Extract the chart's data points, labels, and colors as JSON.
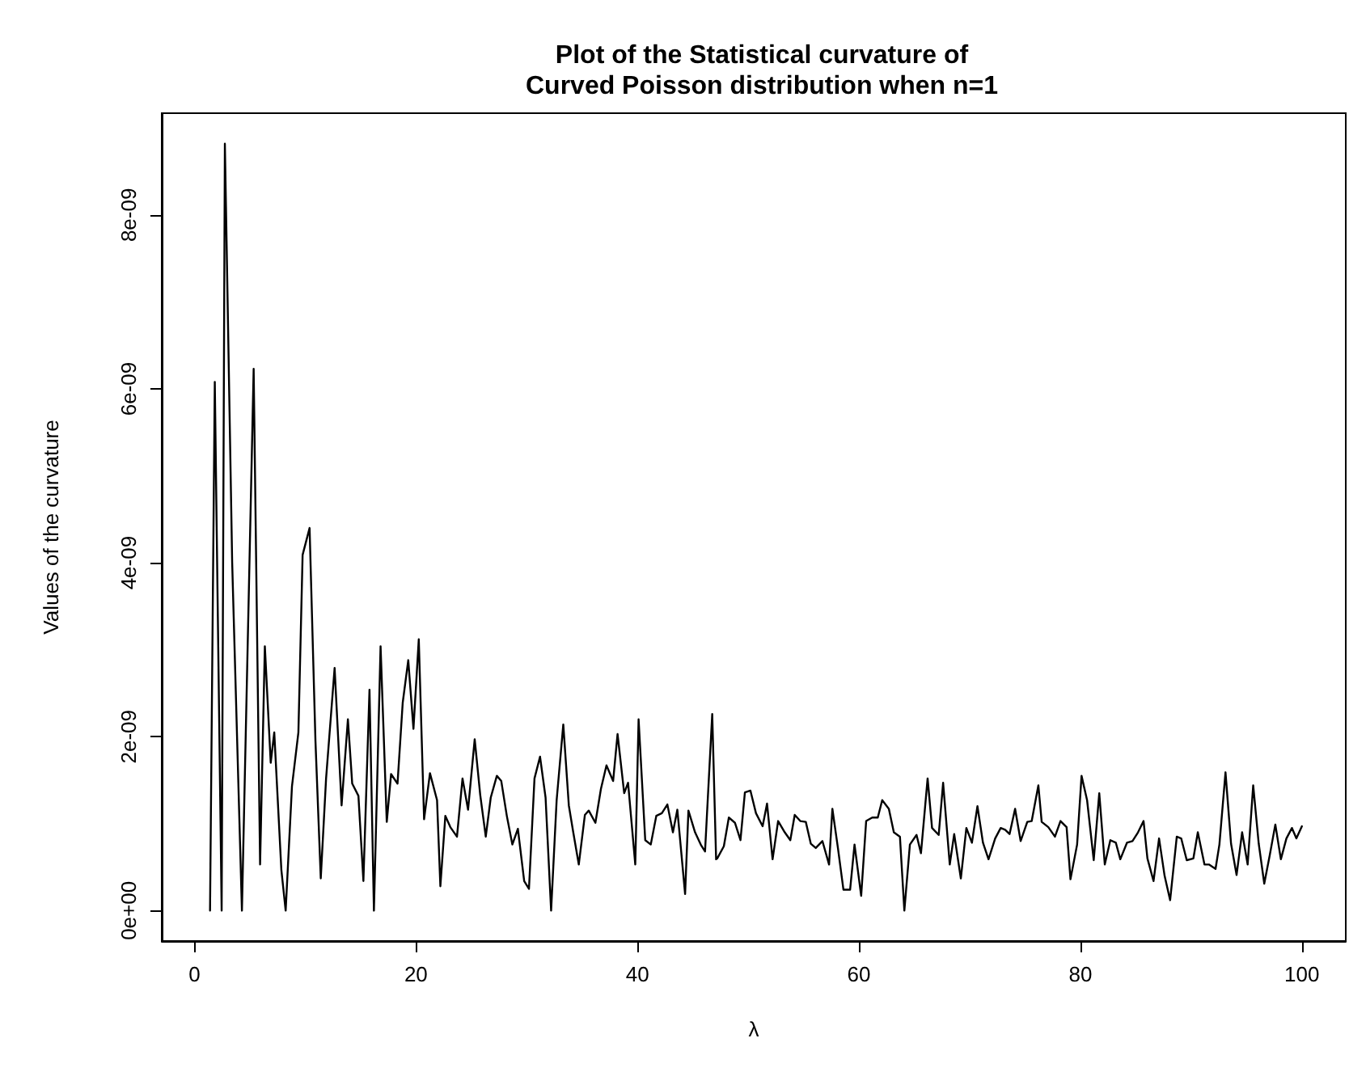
{
  "chart_data": {
    "type": "line",
    "title": "Plot of the Statistical curvature of\nCurved Poisson distribution when n=1",
    "xlabel": "λ",
    "ylabel": "Values of the curvature",
    "x": [
      1.4,
      1.83,
      2.45,
      2.74,
      3.4,
      4.28,
      5.34,
      5.92,
      6.35,
      6.88,
      7.2,
      7.84,
      8.23,
      8.8,
      9.38,
      9.76,
      10.39,
      10.92,
      11.4,
      11.88,
      12.65,
      13.28,
      13.85,
      14.24,
      14.8,
      15.25,
      15.8,
      16.2,
      16.8,
      17.36,
      17.75,
      18.33,
      18.8,
      19.3,
      19.77,
      20.25,
      20.73,
      21.26,
      21.9,
      22.2,
      22.65,
      23.1,
      23.7,
      24.2,
      24.7,
      25.3,
      25.8,
      26.3,
      26.75,
      27.3,
      27.7,
      28.2,
      28.7,
      29.2,
      29.77,
      30.2,
      30.7,
      31.2,
      31.7,
      32.2,
      32.7,
      33.3,
      33.8,
      34.2,
      34.7,
      35.25,
      35.6,
      36.2,
      36.7,
      37.2,
      37.8,
      38.2,
      38.8,
      39.15,
      39.8,
      40.1,
      40.7,
      41.2,
      41.7,
      42.2,
      42.7,
      43.2,
      43.6,
      44.3,
      44.6,
      45.2,
      45.75,
      46.1,
      46.75,
      47.1,
      47.2,
      47.8,
      48.25,
      48.8,
      49.3,
      49.7,
      50.2,
      50.7,
      51.3,
      51.7,
      52.2,
      52.7,
      53.3,
      53.8,
      54.2,
      54.7,
      55.2,
      55.65,
      56.1,
      56.7,
      57.3,
      57.6,
      58.1,
      58.6,
      59.2,
      59.6,
      60.2,
      60.65,
      61.2,
      61.7,
      62.1,
      62.7,
      63.15,
      63.7,
      64.1,
      64.6,
      65.2,
      65.6,
      66.2,
      66.6,
      67.2,
      67.6,
      68.2,
      68.6,
      69.2,
      69.7,
      70.2,
      70.7,
      71.2,
      71.7,
      72.3,
      72.8,
      73.2,
      73.6,
      74.1,
      74.6,
      75.2,
      75.6,
      76.2,
      76.5,
      77.1,
      77.7,
      78.2,
      78.75,
      79.1,
      79.7,
      80.1,
      80.6,
      81.2,
      81.7,
      82.2,
      82.7,
      83.2,
      83.6,
      84.2,
      84.7,
      85.2,
      85.7,
      86.05,
      86.6,
      87.1,
      87.6,
      88.1,
      88.7,
      89.1,
      89.6,
      90.2,
      90.6,
      91.2,
      91.6,
      92.2,
      92.55,
      93.1,
      93.6,
      94.1,
      94.6,
      95.1,
      95.6,
      96.1,
      96.6,
      97.1,
      97.6,
      98.1,
      98.6,
      99.1,
      99.5,
      100.0
    ],
    "series": [
      {
        "color": "#000000",
        "values": [
          0,
          6.08e-09,
          0,
          8.82e-09,
          4e-09,
          0,
          6.23e-09,
          5.3e-10,
          3.04e-09,
          1.7e-09,
          2.05e-09,
          4.7e-10,
          0,
          1.43e-09,
          2.05e-09,
          4.09e-09,
          4.4e-09,
          1.95e-09,
          3.7e-10,
          1.52e-09,
          2.79e-09,
          1.21e-09,
          2.2e-09,
          1.46e-09,
          1.32e-09,
          3.4e-10,
          2.54e-09,
          0,
          3.04e-09,
          1.02e-09,
          1.57e-09,
          1.46e-09,
          2.39e-09,
          2.88e-09,
          2.09e-09,
          3.12e-09,
          1.05e-09,
          1.58e-09,
          1.27e-09,
          2.8e-10,
          1.09e-09,
          9.6e-10,
          8.5e-10,
          1.52e-09,
          1.16e-09,
          1.97e-09,
          1.33e-09,
          8.5e-10,
          1.3e-09,
          1.55e-09,
          1.49e-09,
          1.09e-09,
          7.6e-10,
          9.4e-10,
          3.4e-10,
          2.5e-10,
          1.52e-09,
          1.77e-09,
          1.3e-09,
          0,
          1.27e-09,
          2.14e-09,
          1.21e-09,
          9e-10,
          5.3e-10,
          1.1e-09,
          1.15e-09,
          1.01e-09,
          1.4e-09,
          1.67e-09,
          1.49e-09,
          2.03e-09,
          1.35e-09,
          1.47e-09,
          5.3e-10,
          2.2e-09,
          8.1e-10,
          7.6e-10,
          1.09e-09,
          1.12e-09,
          1.22e-09,
          9e-10,
          1.16e-09,
          1.9e-10,
          1.15e-09,
          9e-10,
          7.5e-10,
          6.8e-10,
          2.26e-09,
          5.9e-10,
          6e-10,
          7.4e-10,
          1.07e-09,
          1.01e-09,
          8.1e-10,
          1.36e-09,
          1.38e-09,
          1.12e-09,
          9.7e-10,
          1.23e-09,
          5.9e-10,
          1.03e-09,
          9e-10,
          8.1e-10,
          1.1e-09,
          1.03e-09,
          1.02e-09,
          7.7e-10,
          7.2e-10,
          8e-10,
          5.3e-10,
          1.17e-09,
          7.2e-10,
          2.4e-10,
          2.4e-10,
          7.6e-10,
          1.7e-10,
          1.03e-09,
          1.07e-09,
          1.07e-09,
          1.27e-09,
          1.17e-09,
          9e-10,
          8.5e-10,
          0,
          7.6e-10,
          8.7e-10,
          6.6e-10,
          1.52e-09,
          9.5e-10,
          8.7e-10,
          1.47e-09,
          5.3e-10,
          8.8e-10,
          3.7e-10,
          9.5e-10,
          7.8e-10,
          1.2e-09,
          7.8e-10,
          5.9e-10,
          8.3e-10,
          9.5e-10,
          9.3e-10,
          8.8e-10,
          1.17e-09,
          8e-10,
          1.02e-09,
          1.03e-09,
          1.44e-09,
          1.02e-09,
          9.6e-10,
          8.5e-10,
          1.03e-09,
          9.6e-10,
          3.6e-10,
          7.6e-10,
          1.55e-09,
          1.27e-09,
          5.8e-10,
          1.35e-09,
          5.3e-10,
          8.1e-10,
          7.8e-10,
          5.9e-10,
          7.8e-10,
          8e-10,
          9e-10,
          1.03e-09,
          6e-10,
          3.4e-10,
          8.3e-10,
          4e-10,
          1.2e-10,
          8.5e-10,
          8.3e-10,
          5.8e-10,
          6e-10,
          9e-10,
          5.3e-10,
          5.3e-10,
          4.8e-10,
          7.6e-10,
          1.59e-09,
          7.7e-10,
          4.1e-10,
          9e-10,
          5.3e-10,
          1.44e-09,
          7.7e-10,
          3.1e-10,
          6.4e-10,
          9.9e-10,
          5.9e-10,
          8.3e-10,
          9.5e-10,
          8.3e-10,
          9.7e-10
        ]
      }
    ],
    "xlim": [
      -2.96,
      103.96
    ],
    "xticks": [
      0,
      20,
      40,
      60,
      80,
      100
    ],
    "ylim": [
      -3.5e-10,
      9.17e-09
    ],
    "yticks": [
      {
        "value": 0,
        "label": "0e+00"
      },
      {
        "value": 2e-09,
        "label": "2e-09"
      },
      {
        "value": 4e-09,
        "label": "4e-09"
      },
      {
        "value": 6e-09,
        "label": "6e-09"
      },
      {
        "value": 8e-09,
        "label": "8e-09"
      }
    ],
    "grid": false,
    "marker": "none",
    "line_style": "solid"
  }
}
